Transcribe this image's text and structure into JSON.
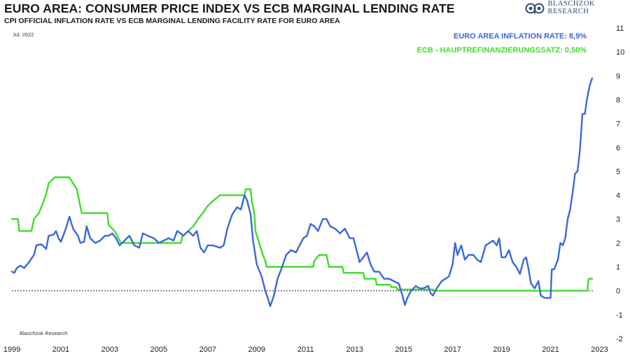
{
  "header": {
    "title": "EURO AREA: CONSUMER PRICE INDEX VS ECB MARGINAL LENDING RATE",
    "subtitle": "CPI OFFICIAL INFLATION RATE VS ECB MARGINAL LENDING FACILITY RATE FOR EURO AREA",
    "date_label": "Jul. 2022",
    "source": "Blaschzok Research"
  },
  "logo": {
    "line1": "BLASCHZOK",
    "line2": "RESEARCH"
  },
  "chart_data": {
    "type": "line",
    "title": "EURO AREA: CONSUMER PRICE INDEX VS ECB MARGINAL LENDING RATE",
    "subtitle": "CPI OFFICIAL INFLATION RATE VS ECB MARGINAL LENDING FACILITY RATE FOR EURO AREA",
    "xlabel": "",
    "ylabel": "",
    "xlim": [
      1999,
      2023.1
    ],
    "ylim": [
      -2,
      11
    ],
    "x_ticks": [
      1999,
      2001,
      2003,
      2005,
      2007,
      2009,
      2011,
      2013,
      2015,
      2017,
      2019,
      2021,
      2023
    ],
    "y_ticks": [
      -2,
      -1,
      0,
      1,
      2,
      3,
      4,
      5,
      6,
      7,
      8,
      9,
      10,
      11
    ],
    "y_axis_side": "right",
    "zero_line": "dotted",
    "legend": [
      {
        "label": "EURO AREA INFLATION RATE: 8,9%",
        "color": "#3a67dc"
      },
      {
        "label": "ECB - HAUPTREFINANZIERUNGSSATZ: 0,50%",
        "color": "#3fdc2a"
      }
    ],
    "series": [
      {
        "name": "Euro Area Inflation Rate",
        "color": "#3a67dc",
        "points": [
          [
            1999.0,
            0.8
          ],
          [
            1999.1,
            0.75
          ],
          [
            1999.2,
            0.95
          ],
          [
            1999.35,
            1.05
          ],
          [
            1999.5,
            0.95
          ],
          [
            1999.7,
            1.2
          ],
          [
            1999.9,
            1.5
          ],
          [
            2000.0,
            1.9
          ],
          [
            2000.2,
            1.95
          ],
          [
            2000.4,
            1.75
          ],
          [
            2000.5,
            2.3
          ],
          [
            2000.7,
            2.35
          ],
          [
            2000.8,
            2.5
          ],
          [
            2000.9,
            2.2
          ],
          [
            2001.0,
            2.05
          ],
          [
            2001.2,
            2.6
          ],
          [
            2001.35,
            3.1
          ],
          [
            2001.5,
            2.6
          ],
          [
            2001.7,
            2.3
          ],
          [
            2001.8,
            2.0
          ],
          [
            2001.95,
            2.05
          ],
          [
            2002.05,
            2.7
          ],
          [
            2002.2,
            2.2
          ],
          [
            2002.4,
            2.0
          ],
          [
            2002.6,
            2.1
          ],
          [
            2002.8,
            2.3
          ],
          [
            2002.95,
            2.3
          ],
          [
            2003.1,
            2.4
          ],
          [
            2003.25,
            2.2
          ],
          [
            2003.4,
            1.9
          ],
          [
            2003.6,
            2.1
          ],
          [
            2003.8,
            2.3
          ],
          [
            2004.0,
            1.9
          ],
          [
            2004.2,
            1.8
          ],
          [
            2004.35,
            2.4
          ],
          [
            2004.55,
            2.3
          ],
          [
            2004.8,
            2.2
          ],
          [
            2005.0,
            2.0
          ],
          [
            2005.2,
            2.1
          ],
          [
            2005.4,
            2.2
          ],
          [
            2005.6,
            2.1
          ],
          [
            2005.75,
            2.5
          ],
          [
            2005.9,
            2.4
          ],
          [
            2006.0,
            2.3
          ],
          [
            2006.2,
            2.5
          ],
          [
            2006.4,
            2.3
          ],
          [
            2006.55,
            2.5
          ],
          [
            2006.7,
            1.8
          ],
          [
            2006.85,
            1.6
          ],
          [
            2007.0,
            1.9
          ],
          [
            2007.2,
            1.9
          ],
          [
            2007.5,
            1.8
          ],
          [
            2007.65,
            1.9
          ],
          [
            2007.8,
            2.6
          ],
          [
            2008.0,
            3.2
          ],
          [
            2008.2,
            3.5
          ],
          [
            2008.35,
            3.4
          ],
          [
            2008.5,
            4.0
          ],
          [
            2008.6,
            3.8
          ],
          [
            2008.75,
            3.2
          ],
          [
            2008.85,
            2.1
          ],
          [
            2009.0,
            1.1
          ],
          [
            2009.2,
            0.6
          ],
          [
            2009.35,
            0.0
          ],
          [
            2009.45,
            -0.3
          ],
          [
            2009.55,
            -0.65
          ],
          [
            2009.7,
            -0.2
          ],
          [
            2009.85,
            0.5
          ],
          [
            2010.0,
            0.9
          ],
          [
            2010.2,
            1.5
          ],
          [
            2010.4,
            1.7
          ],
          [
            2010.6,
            1.6
          ],
          [
            2010.75,
            1.9
          ],
          [
            2010.9,
            2.2
          ],
          [
            2011.05,
            2.3
          ],
          [
            2011.2,
            2.8
          ],
          [
            2011.35,
            2.7
          ],
          [
            2011.5,
            2.5
          ],
          [
            2011.7,
            3.0
          ],
          [
            2011.85,
            3.0
          ],
          [
            2012.0,
            2.7
          ],
          [
            2012.2,
            2.6
          ],
          [
            2012.4,
            2.4
          ],
          [
            2012.6,
            2.6
          ],
          [
            2012.8,
            2.2
          ],
          [
            2012.95,
            2.2
          ],
          [
            2013.05,
            1.8
          ],
          [
            2013.2,
            1.2
          ],
          [
            2013.35,
            1.4
          ],
          [
            2013.5,
            1.6
          ],
          [
            2013.65,
            1.1
          ],
          [
            2013.8,
            0.8
          ],
          [
            2014.0,
            0.8
          ],
          [
            2014.2,
            0.5
          ],
          [
            2014.4,
            0.5
          ],
          [
            2014.6,
            0.4
          ],
          [
            2014.8,
            0.3
          ],
          [
            2014.95,
            -0.2
          ],
          [
            2015.05,
            -0.6
          ],
          [
            2015.15,
            -0.3
          ],
          [
            2015.3,
            0.0
          ],
          [
            2015.5,
            0.2
          ],
          [
            2015.65,
            0.1
          ],
          [
            2015.8,
            0.1
          ],
          [
            2016.0,
            0.2
          ],
          [
            2016.1,
            -0.1
          ],
          [
            2016.2,
            -0.2
          ],
          [
            2016.35,
            0.1
          ],
          [
            2016.55,
            0.4
          ],
          [
            2016.7,
            0.5
          ],
          [
            2016.85,
            0.6
          ],
          [
            2017.0,
            1.1
          ],
          [
            2017.1,
            2.0
          ],
          [
            2017.2,
            1.5
          ],
          [
            2017.35,
            1.9
          ],
          [
            2017.5,
            1.3
          ],
          [
            2017.65,
            1.5
          ],
          [
            2017.85,
            1.5
          ],
          [
            2018.0,
            1.3
          ],
          [
            2018.15,
            1.2
          ],
          [
            2018.35,
            1.9
          ],
          [
            2018.5,
            2.0
          ],
          [
            2018.65,
            2.1
          ],
          [
            2018.8,
            1.9
          ],
          [
            2018.9,
            2.2
          ],
          [
            2019.0,
            1.4
          ],
          [
            2019.15,
            1.4
          ],
          [
            2019.3,
            1.7
          ],
          [
            2019.45,
            1.2
          ],
          [
            2019.6,
            1.0
          ],
          [
            2019.75,
            0.7
          ],
          [
            2019.9,
            1.3
          ],
          [
            2020.0,
            1.4
          ],
          [
            2020.1,
            0.9
          ],
          [
            2020.2,
            0.3
          ],
          [
            2020.35,
            0.1
          ],
          [
            2020.5,
            0.4
          ],
          [
            2020.6,
            -0.2
          ],
          [
            2020.75,
            -0.3
          ],
          [
            2021.0,
            -0.3
          ],
          [
            2021.05,
            0.9
          ],
          [
            2021.15,
            0.9
          ],
          [
            2021.3,
            1.3
          ],
          [
            2021.4,
            2.0
          ],
          [
            2021.5,
            1.9
          ],
          [
            2021.6,
            2.2
          ],
          [
            2021.7,
            3.0
          ],
          [
            2021.8,
            3.4
          ],
          [
            2021.9,
            4.1
          ],
          [
            2022.0,
            4.9
          ],
          [
            2022.1,
            5.0
          ],
          [
            2022.2,
            5.9
          ],
          [
            2022.3,
            7.4
          ],
          [
            2022.4,
            7.4
          ],
          [
            2022.5,
            8.1
          ],
          [
            2022.6,
            8.6
          ],
          [
            2022.7,
            8.9
          ]
        ]
      },
      {
        "name": "ECB - Hauptrefinanzierungssatz",
        "color": "#3fdc2a",
        "points": [
          [
            1999.0,
            3.0
          ],
          [
            1999.25,
            3.0
          ],
          [
            1999.3,
            2.5
          ],
          [
            1999.8,
            2.5
          ],
          [
            1999.9,
            3.0
          ],
          [
            2000.1,
            3.25
          ],
          [
            2000.2,
            3.5
          ],
          [
            2000.3,
            3.75
          ],
          [
            2000.45,
            4.25
          ],
          [
            2000.5,
            4.5
          ],
          [
            2000.75,
            4.75
          ],
          [
            2001.35,
            4.75
          ],
          [
            2001.5,
            4.5
          ],
          [
            2001.65,
            4.25
          ],
          [
            2001.75,
            3.75
          ],
          [
            2001.85,
            3.25
          ],
          [
            2002.9,
            3.25
          ],
          [
            2002.95,
            2.75
          ],
          [
            2003.2,
            2.5
          ],
          [
            2003.45,
            2.0
          ],
          [
            2005.9,
            2.0
          ],
          [
            2005.95,
            2.25
          ],
          [
            2006.2,
            2.5
          ],
          [
            2006.45,
            2.75
          ],
          [
            2006.6,
            3.0
          ],
          [
            2006.8,
            3.25
          ],
          [
            2006.95,
            3.5
          ],
          [
            2007.2,
            3.75
          ],
          [
            2007.5,
            4.0
          ],
          [
            2008.5,
            4.0
          ],
          [
            2008.55,
            4.25
          ],
          [
            2008.75,
            4.25
          ],
          [
            2008.8,
            3.75
          ],
          [
            2008.9,
            3.25
          ],
          [
            2008.95,
            2.5
          ],
          [
            2009.1,
            2.0
          ],
          [
            2009.25,
            1.5
          ],
          [
            2009.35,
            1.25
          ],
          [
            2009.4,
            1.0
          ],
          [
            2011.3,
            1.0
          ],
          [
            2011.35,
            1.25
          ],
          [
            2011.55,
            1.5
          ],
          [
            2011.85,
            1.5
          ],
          [
            2011.9,
            1.25
          ],
          [
            2011.95,
            1.0
          ],
          [
            2012.5,
            1.0
          ],
          [
            2012.55,
            0.75
          ],
          [
            2013.35,
            0.75
          ],
          [
            2013.4,
            0.5
          ],
          [
            2013.85,
            0.5
          ],
          [
            2013.9,
            0.25
          ],
          [
            2014.45,
            0.25
          ],
          [
            2014.5,
            0.15
          ],
          [
            2014.7,
            0.15
          ],
          [
            2014.75,
            0.05
          ],
          [
            2016.2,
            0.05
          ],
          [
            2016.25,
            0.0
          ],
          [
            2022.5,
            0.0
          ],
          [
            2022.55,
            0.5
          ],
          [
            2022.7,
            0.5
          ]
        ]
      }
    ]
  },
  "colors": {
    "inflation": "#3a67dc",
    "ecb_rate": "#3fdc2a",
    "legend_inflation": "#3a67dc",
    "legend_ecb": "#3fdc2a"
  }
}
